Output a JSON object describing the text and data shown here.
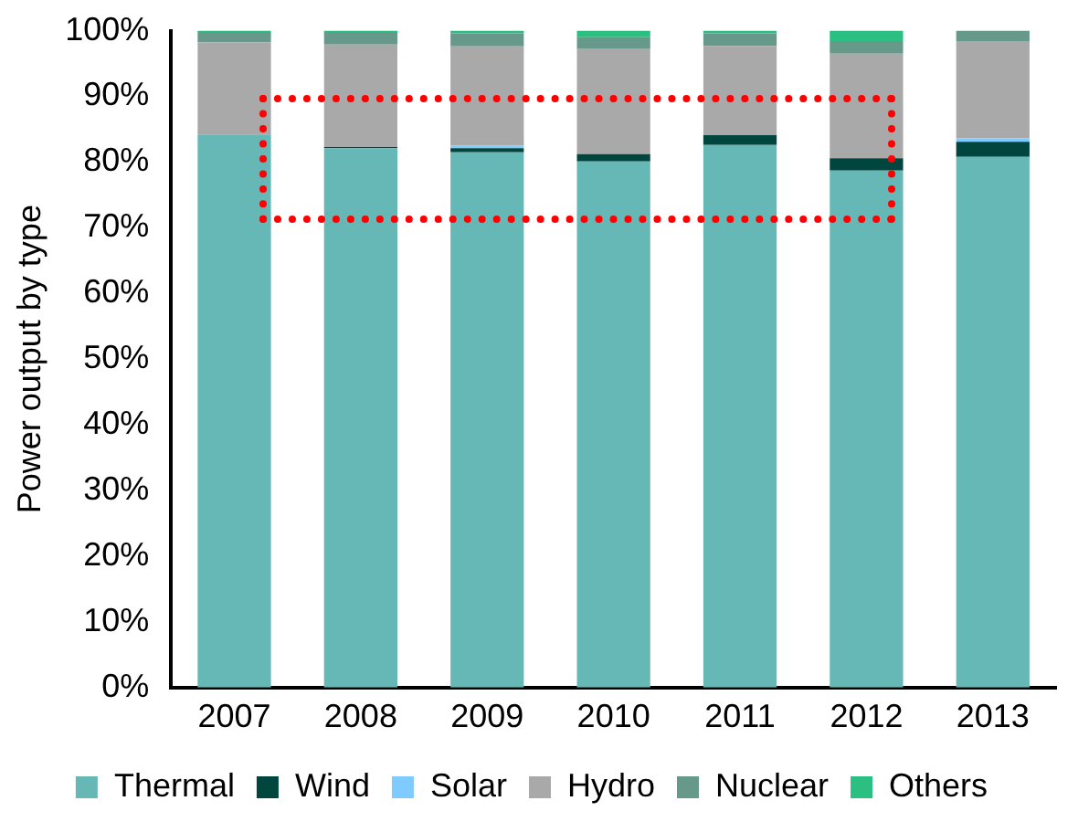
{
  "chart_data": {
    "type": "bar",
    "stacked": true,
    "ylabel": "Power output by type",
    "categories": [
      "2007",
      "2008",
      "2009",
      "2010",
      "2011",
      "2012",
      "2013"
    ],
    "series": [
      {
        "name": "Thermal",
        "color": "#66b8b6",
        "values": [
          84.2,
          82.1,
          81.5,
          80.1,
          82.6,
          78.7,
          80.8
        ]
      },
      {
        "name": "Wind",
        "color": "#00463f",
        "values": [
          0,
          0.2,
          0.6,
          1.1,
          1.5,
          1.9,
          2.3
        ]
      },
      {
        "name": "Solar",
        "color": "#7fcbff",
        "values": [
          0,
          0,
          0.4,
          0,
          0,
          0,
          0.5
        ]
      },
      {
        "name": "Hydro",
        "color": "#a9a9a9",
        "values": [
          14.0,
          15.6,
          15.1,
          16.1,
          13.6,
          15.9,
          14.8
        ]
      },
      {
        "name": "Nuclear",
        "color": "#66998a",
        "values": [
          1.6,
          1.9,
          2.0,
          1.7,
          1.9,
          1.9,
          1.6
        ]
      },
      {
        "name": "Others",
        "color": "#2bbf82",
        "values": [
          0.2,
          0.2,
          0.4,
          1.0,
          0.4,
          1.6,
          0
        ]
      }
    ],
    "ylim": [
      0,
      100
    ],
    "yticks": [
      {
        "value": 0,
        "label": "0%"
      },
      {
        "value": 10,
        "label": "10%"
      },
      {
        "value": 20,
        "label": "20%"
      },
      {
        "value": 30,
        "label": "30%"
      },
      {
        "value": 40,
        "label": "40%"
      },
      {
        "value": 50,
        "label": "50%"
      },
      {
        "value": 60,
        "label": "60%"
      },
      {
        "value": 70,
        "label": "70%"
      },
      {
        "value": 80,
        "label": "80%"
      },
      {
        "value": 90,
        "label": "90%"
      },
      {
        "value": 100,
        "label": "100%"
      }
    ],
    "grid": false,
    "legend": "bottom"
  }
}
